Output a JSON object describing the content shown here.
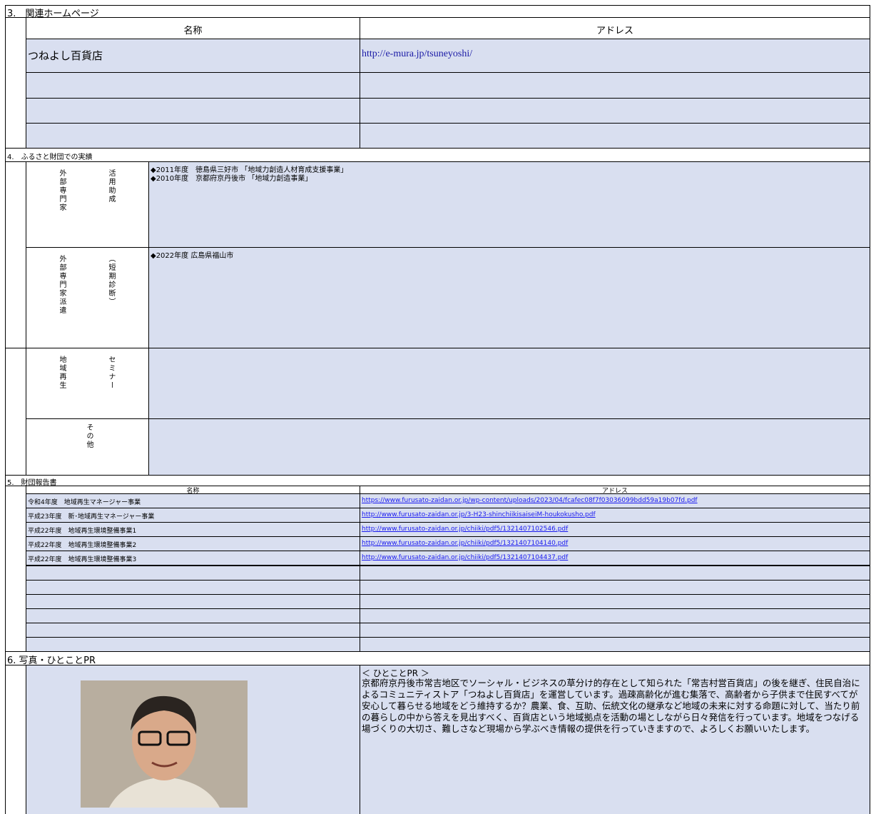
{
  "section3": {
    "title": "3.　関連ホームページ",
    "headers": [
      "名称",
      "アドレス"
    ],
    "rows": [
      [
        "つねよし百貨店",
        "http://e-mura.jp/tsuneyoshi/"
      ]
    ]
  },
  "section4": {
    "title": "4.　ふるさと財団での実績",
    "rows": [
      {
        "label": [
          "外部専門家",
          "活用助成"
        ],
        "items": [
          "◆2011年度　徳島県三好市 「地域力創造人材育成支援事業」",
          "◆2010年度　京都府京丹後市 「地域力創造事業」"
        ]
      },
      {
        "label": [
          "外部専門家派遣",
          "（短期診断）"
        ],
        "items": [
          "◆2022年度 広島県福山市"
        ]
      },
      {
        "label": [
          "地域再生",
          "セミナー"
        ]
      },
      {
        "label": [
          "その他"
        ]
      }
    ]
  },
  "section5": {
    "title": "5.　財団報告書",
    "headers": [
      "名称",
      "アドレス"
    ],
    "rows": [
      [
        "令和4年度　地域再生マネージャー事業",
        "https://www.furusato-zaidan.or.jp/wp-content/uploads/2023/04/fcafec08f7f03036099bdd59a19b07fd.pdf"
      ],
      [
        "平成23年度　新･地域再生マネージャー事業",
        "http://www.furusato-zaidan.or.jp/3-H23-shinchiikisaiseiM-houkokusho.pdf"
      ],
      [
        "平成22年度　地域再生環境整備事業1",
        "http://www.furusato-zaidan.or.jp/chiiki/pdf5/1321407102546.pdf"
      ],
      [
        "平成22年度　地域再生環境整備事業2",
        "http://www.furusato-zaidan.or.jp/chiiki/pdf5/1321407104140.pdf"
      ],
      [
        "平成22年度　地域再生環境整備事業3",
        "http://www.furusato-zaidan.or.jp/chiiki/pdf5/1321407104437.pdf"
      ]
    ]
  },
  "section6": {
    "title": "6. 写真・ひとことPR",
    "pr_heading": "＜ ひとことPR ＞",
    "pr_text": "京都府京丹後市常吉地区でソーシャル・ビジネスの草分け的存在として知られた「常吉村営百貨店」の後を継ぎ、住民自治によるコミュニティストア「つねよし百貨店」を運営しています。過疎高齢化が進む集落で、高齢者から子供まで住民すべてが安心して暮らせる地域をどう維持するか？農業、食、互助、伝統文化の継承など地域の未来に対する命題に対して、当たり前の暮らしの中から答えを見出すべく、百貨店という地域拠点を活動の場としながら日々発信を行っています。地域をつなげる場づくりの大切さ、難しさなど現場から学ぶべき情報の提供を行っていきますので、よろしくお願いいたします。"
  }
}
